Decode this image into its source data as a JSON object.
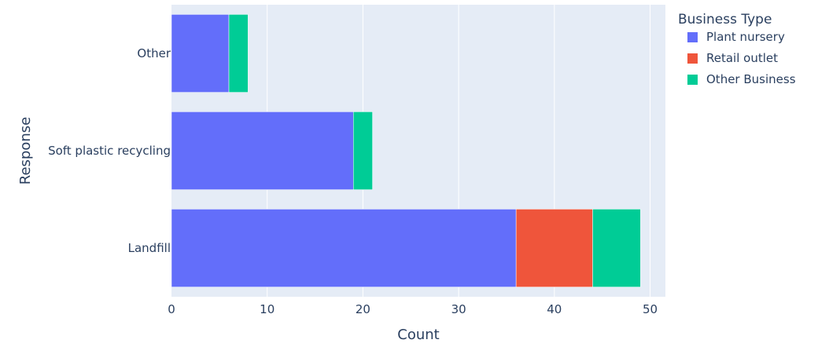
{
  "chart_data": {
    "type": "bar",
    "orientation": "horizontal",
    "barmode": "stack",
    "categories": [
      "Landfill",
      "Soft plastic recycling",
      "Other"
    ],
    "series": [
      {
        "name": "Plant nursery",
        "values": [
          36,
          19,
          6
        ],
        "color": "#636efa"
      },
      {
        "name": "Retail outlet",
        "values": [
          8,
          0,
          0
        ],
        "color": "#ef553b"
      },
      {
        "name": "Other Business",
        "values": [
          5,
          2,
          2
        ],
        "color": "#00cc96"
      }
    ],
    "xlabel": "Count",
    "ylabel": "Response",
    "xlim": [
      0,
      51.6
    ],
    "xticks": [
      0,
      10,
      20,
      30,
      40,
      50
    ],
    "grid": true,
    "legend_title": "Business Type",
    "legend_position": "top-right",
    "plot_background": "#e5ecf6"
  }
}
